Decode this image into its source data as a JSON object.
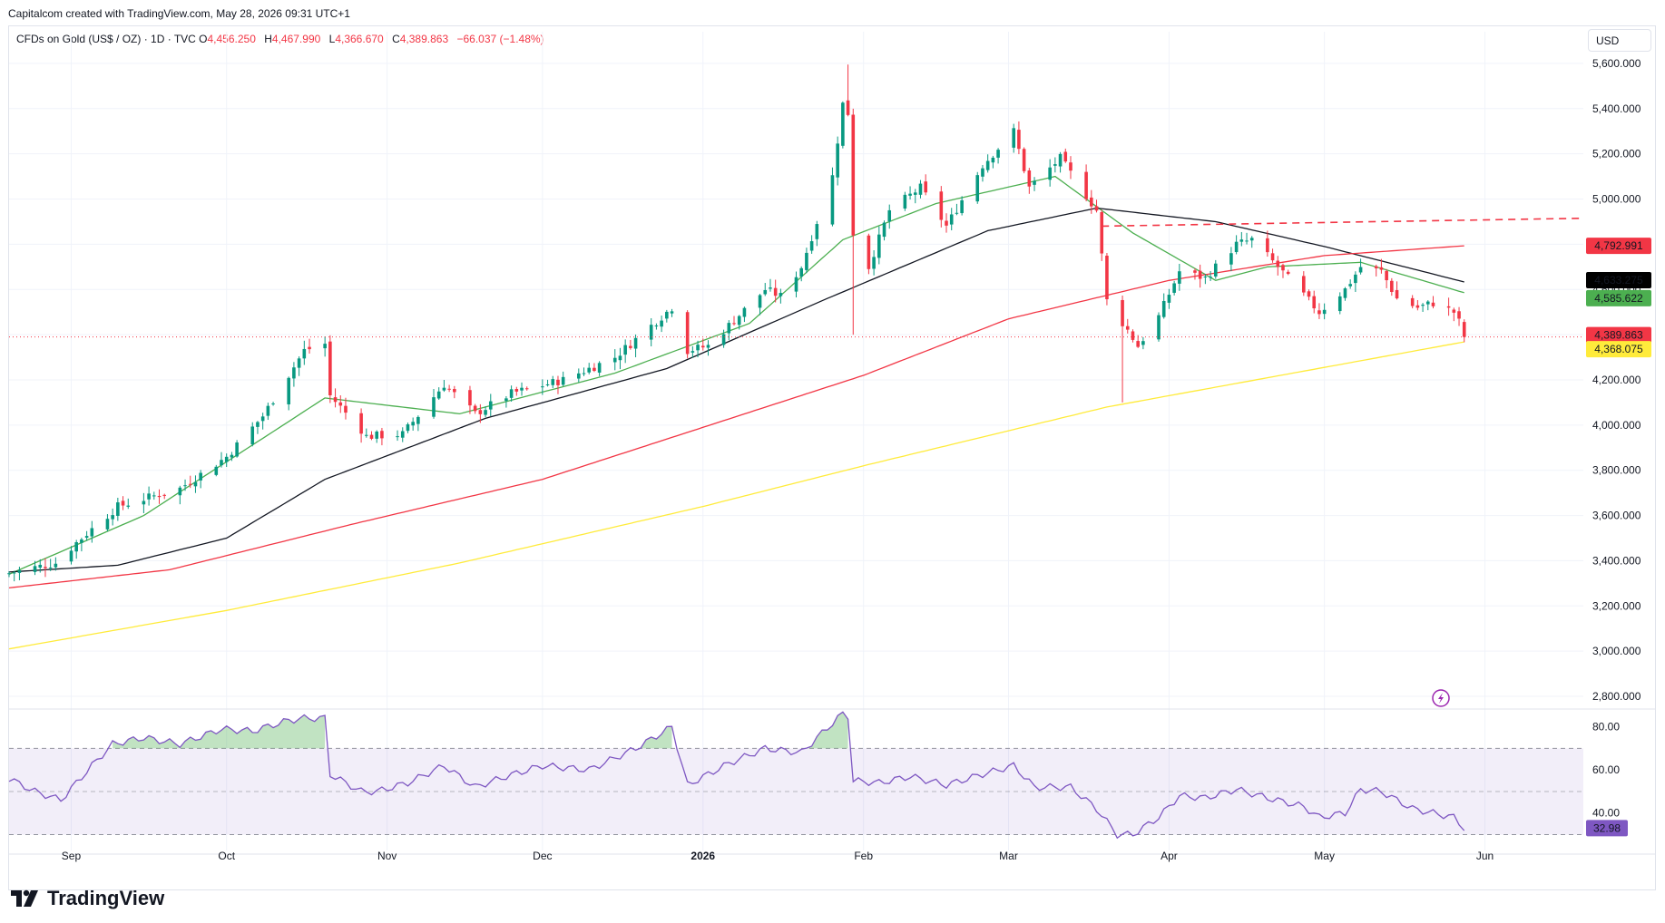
{
  "caption": "Capitalcom created with TradingView.com, May 28, 2026 09:31 UTC+1",
  "legend": {
    "symbol": "CFDs on Gold (US$ / OZ) · 1D · TVC",
    "o_label": "O",
    "o": "4,456.250",
    "h_label": "H",
    "h": "4,467.990",
    "l_label": "L",
    "l": "4,366.670",
    "c_label": "C",
    "c": "4,389.863",
    "change": "−66.037 (−1.48%)"
  },
  "currency": "USD",
  "brand": "TradingView",
  "colors": {
    "up": "#089981",
    "down": "#f23645",
    "ma_short": "#4caf50",
    "ma_mid": "#131722",
    "ma_long": "#f23645",
    "ma_200": "#ffeb3b",
    "rsi": "#7e57c2",
    "rsi_band": "#7e57c2"
  },
  "chart_data": [
    {
      "type": "candlestick",
      "title": "",
      "y_axis_ticks": [
        "5,600.000",
        "5,400.000",
        "5,200.000",
        "5,000.000",
        "4,800.000",
        "4,600.000",
        "4,400.000",
        "4,200.000",
        "4,000.000",
        "3,800.000",
        "3,600.000",
        "3,400.000",
        "3,200.000",
        "3,000.000",
        "2,800.000"
      ],
      "ylim": [
        2760,
        5700
      ],
      "x_axis_ticks": [
        "Sep",
        "Oct",
        "Nov",
        "Dec",
        "2026",
        "Feb",
        "Mar",
        "Apr",
        "May",
        "Jun"
      ],
      "x_range": [
        "2025-08-20",
        "2026-06-20"
      ],
      "price_anchors_close": [
        [
          "2025-08-20",
          3345
        ],
        [
          "2025-08-29",
          3390
        ],
        [
          "2025-09-02",
          3480
        ],
        [
          "2025-09-10",
          3640
        ],
        [
          "2025-09-22",
          3720
        ],
        [
          "2025-10-01",
          3860
        ],
        [
          "2025-10-08",
          4040
        ],
        [
          "2025-10-16",
          4330
        ],
        [
          "2025-10-20",
          4360
        ],
        [
          "2025-10-21",
          4130
        ],
        [
          "2025-10-27",
          3980
        ],
        [
          "2025-10-28",
          3950
        ],
        [
          "2025-11-04",
          3960
        ],
        [
          "2025-11-12",
          4180
        ],
        [
          "2025-11-18",
          4050
        ],
        [
          "2025-11-25",
          4140
        ],
        [
          "2025-12-05",
          4200
        ],
        [
          "2025-12-15",
          4300
        ],
        [
          "2025-12-26",
          4520
        ],
        [
          "2025-12-29",
          4330
        ],
        [
          "2026-01-02",
          4350
        ],
        [
          "2026-01-13",
          4600
        ],
        [
          "2026-01-16",
          4570
        ],
        [
          "2026-01-20",
          4700
        ],
        [
          "2026-01-26",
          5100
        ],
        [
          "2026-01-28",
          5420
        ],
        [
          "2026-01-29",
          5380
        ],
        [
          "2026-01-30",
          4850
        ],
        [
          "2026-02-02",
          4700
        ],
        [
          "2026-02-06",
          4950
        ],
        [
          "2026-02-12",
          5050
        ],
        [
          "2026-02-17",
          4880
        ],
        [
          "2026-02-24",
          5150
        ],
        [
          "2026-03-02",
          5300
        ],
        [
          "2026-03-05",
          5050
        ],
        [
          "2026-03-11",
          5180
        ],
        [
          "2026-03-18",
          4950
        ],
        [
          "2026-03-20",
          4550
        ],
        [
          "2026-03-24",
          4420
        ],
        [
          "2026-03-26",
          4350
        ],
        [
          "2026-03-30",
          4480
        ],
        [
          "2026-04-03",
          4680
        ],
        [
          "2026-04-08",
          4650
        ],
        [
          "2026-04-14",
          4800
        ],
        [
          "2026-04-17",
          4820
        ],
        [
          "2026-04-22",
          4700
        ],
        [
          "2026-04-30",
          4500
        ],
        [
          "2026-05-05",
          4600
        ],
        [
          "2026-05-08",
          4700
        ],
        [
          "2026-05-12",
          4680
        ],
        [
          "2026-05-15",
          4560
        ],
        [
          "2026-05-19",
          4520
        ],
        [
          "2026-05-22",
          4540
        ],
        [
          "2026-05-26",
          4500
        ],
        [
          "2026-05-27",
          4456
        ],
        [
          "2026-05-28",
          4390
        ]
      ],
      "last_candle": {
        "date": "2026-05-28",
        "open": 4456.25,
        "high": 4467.99,
        "low": 4366.67,
        "close": 4389.863
      },
      "series": [
        {
          "values": [
            [
              "2025-08-20",
              3340
            ],
            [
              "2025-09-15",
              3600
            ],
            [
              "2025-10-20",
              4120
            ],
            [
              "2025-11-15",
              4050
            ],
            [
              "2025-12-15",
              4230
            ],
            [
              "2026-01-10",
              4450
            ],
            [
              "2026-01-28",
              4820
            ],
            [
              "2026-02-15",
              4980
            ],
            [
              "2026-03-10",
              5100
            ],
            [
              "2026-03-25",
              4850
            ],
            [
              "2026-04-10",
              4640
            ],
            [
              "2026-04-20",
              4700
            ],
            [
              "2026-05-08",
              4720
            ],
            [
              "2026-05-28",
              4585.622
            ]
          ]
        },
        {
          "values": [
            [
              "2025-08-20",
              3350
            ],
            [
              "2025-09-10",
              3380
            ],
            [
              "2025-10-01",
              3500
            ],
            [
              "2025-10-20",
              3760
            ],
            [
              "2025-11-20",
              4030
            ],
            [
              "2025-12-25",
              4250
            ],
            [
              "2026-01-25",
              4560
            ],
            [
              "2026-02-25",
              4860
            ],
            [
              "2026-03-18",
              4960
            ],
            [
              "2026-04-10",
              4900
            ],
            [
              "2026-05-01",
              4790
            ],
            [
              "2026-05-28",
              4633.275
            ]
          ]
        },
        {
          "values": [
            [
              "2025-08-20",
              3280
            ],
            [
              "2025-09-20",
              3360
            ],
            [
              "2025-10-25",
              3560
            ],
            [
              "2025-12-01",
              3760
            ],
            [
              "2026-01-01",
              3990
            ],
            [
              "2026-02-01",
              4220
            ],
            [
              "2026-03-01",
              4470
            ],
            [
              "2026-04-01",
              4640
            ],
            [
              "2026-05-01",
              4750
            ],
            [
              "2026-05-28",
              4792.991
            ]
          ]
        },
        {
          "values": [
            [
              "2025-08-20",
              3010
            ],
            [
              "2025-10-01",
              3180
            ],
            [
              "2025-11-15",
              3390
            ],
            [
              "2026-01-01",
              3640
            ],
            [
              "2026-02-01",
              3820
            ],
            [
              "2026-03-20",
              4080
            ],
            [
              "2026-05-28",
              4368.075
            ]
          ]
        }
      ],
      "resistance_line": {
        "from": [
          "2026-03-19",
          4880
        ],
        "to": [
          "2026-06-20",
          4915
        ]
      },
      "price_labels": [
        {
          "text": "4,792.991",
          "price": 4792.991,
          "color": "#f23645"
        },
        {
          "text": "4,633.275",
          "price": 4633.275,
          "color": "#000000"
        },
        {
          "text": "4,585.622",
          "price": 4585.622,
          "color": "#4caf50"
        },
        {
          "text": "4,389.863",
          "price": 4389.863,
          "color": "#f23645"
        },
        {
          "text": "4,368.075",
          "price": 4368.075,
          "color": "#ffeb3b"
        }
      ]
    },
    {
      "type": "line",
      "title": "",
      "y_axis_ticks": [
        "80.00",
        "60.00",
        "40.00"
      ],
      "ylim": [
        26,
        87
      ],
      "upper_band": 70,
      "mid_band": 50,
      "lower_band": 30,
      "series": [
        {
          "values": [
            [
              "2025-08-20",
              56
            ],
            [
              "2025-08-25",
              50
            ],
            [
              "2025-08-30",
              46
            ],
            [
              "2025-09-05",
              62
            ],
            [
              "2025-09-09",
              72
            ],
            [
              "2025-09-15",
              75
            ],
            [
              "2025-09-22",
              72
            ],
            [
              "2025-09-30",
              79
            ],
            [
              "2025-10-06",
              78
            ],
            [
              "2025-10-13",
              83
            ],
            [
              "2025-10-16",
              84
            ],
            [
              "2025-10-20",
              84
            ],
            [
              "2025-10-21",
              58
            ],
            [
              "2025-10-27",
              50
            ],
            [
              "2025-10-30",
              50
            ],
            [
              "2025-11-05",
              54
            ],
            [
              "2025-11-12",
              62
            ],
            [
              "2025-11-18",
              52
            ],
            [
              "2025-11-24",
              57
            ],
            [
              "2025-12-01",
              62
            ],
            [
              "2025-12-10",
              60
            ],
            [
              "2025-12-19",
              70
            ],
            [
              "2025-12-26",
              80
            ],
            [
              "2025-12-29",
              53
            ],
            [
              "2026-01-06",
              63
            ],
            [
              "2026-01-13",
              70
            ],
            [
              "2026-01-20",
              68
            ],
            [
              "2026-01-27",
              84
            ],
            [
              "2026-01-28",
              86
            ],
            [
              "2026-01-29",
              85
            ],
            [
              "2026-01-30",
              55
            ],
            [
              "2026-02-04",
              54
            ],
            [
              "2026-02-10",
              57
            ],
            [
              "2026-02-17",
              53
            ],
            [
              "2026-02-24",
              58
            ],
            [
              "2026-03-02",
              62
            ],
            [
              "2026-03-06",
              52
            ],
            [
              "2026-03-13",
              52
            ],
            [
              "2026-03-18",
              42
            ],
            [
              "2026-03-22",
              30
            ],
            [
              "2026-03-25",
              30
            ],
            [
              "2026-03-30",
              38
            ],
            [
              "2026-04-03",
              48
            ],
            [
              "2026-04-08",
              47
            ],
            [
              "2026-04-14",
              51
            ],
            [
              "2026-04-20",
              47
            ],
            [
              "2026-04-27",
              43
            ],
            [
              "2026-04-30",
              38
            ],
            [
              "2026-05-05",
              40
            ],
            [
              "2026-05-08",
              51
            ],
            [
              "2026-05-12",
              50
            ],
            [
              "2026-05-18",
              42
            ],
            [
              "2026-05-22",
              40
            ],
            [
              "2026-05-26",
              38
            ],
            [
              "2026-05-28",
              32.98
            ]
          ]
        }
      ],
      "price_labels": [
        {
          "text": "32.98",
          "value": 32.98,
          "color": "#7e57c2"
        }
      ]
    }
  ]
}
